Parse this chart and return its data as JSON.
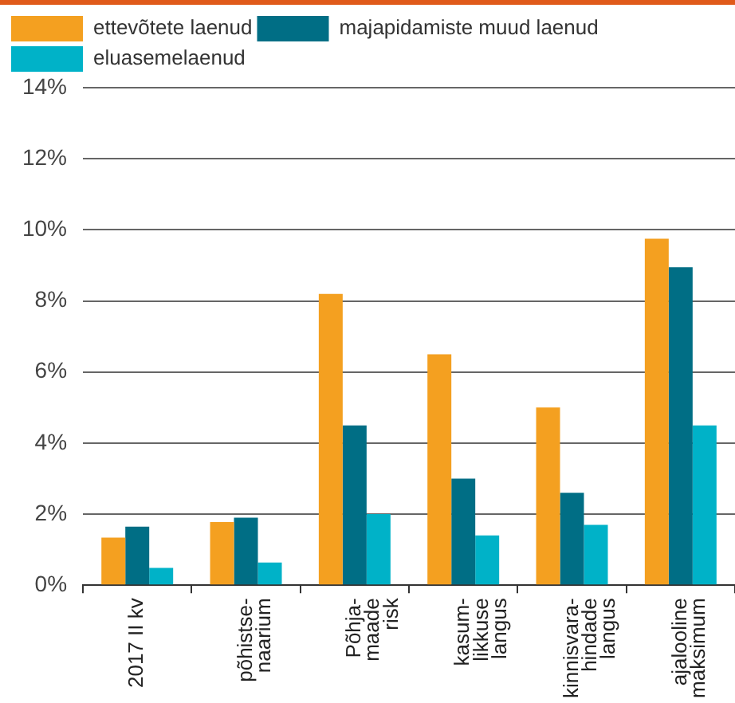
{
  "chart_data": {
    "type": "bar",
    "categories": [
      "2017 II kv",
      "põhistse-\nnaarium",
      "Põhja-\nmaade\nrisk",
      "kasum-\nlikkuse\nlangus",
      "kinnisvara-\nhindade\nlangus",
      "ajalooline\nmaksimum"
    ],
    "series": [
      {
        "name": "ettevõtete laenud",
        "color": "#f4a020",
        "values": [
          1.34,
          1.78,
          8.2,
          6.5,
          5.0,
          9.75
        ]
      },
      {
        "name": "majapidamiste muud laenud",
        "color": "#006e85",
        "values": [
          1.65,
          1.9,
          4.5,
          3.0,
          2.6,
          8.95
        ]
      },
      {
        "name": "eluasemelaenud",
        "color": "#00b2c8",
        "values": [
          0.49,
          0.64,
          2.0,
          1.4,
          1.7,
          4.5
        ]
      }
    ],
    "ylim": [
      0,
      14
    ],
    "yticks": [
      {
        "value": 0,
        "label": "0%"
      },
      {
        "value": 2,
        "label": "2%"
      },
      {
        "value": 4,
        "label": "4%"
      },
      {
        "value": 6,
        "label": "6%"
      },
      {
        "value": 8,
        "label": "8%"
      },
      {
        "value": 10,
        "label": "10%"
      },
      {
        "value": 12,
        "label": "12%"
      },
      {
        "value": 14,
        "label": "14%"
      }
    ],
    "grid": "y",
    "legend": "top left"
  }
}
